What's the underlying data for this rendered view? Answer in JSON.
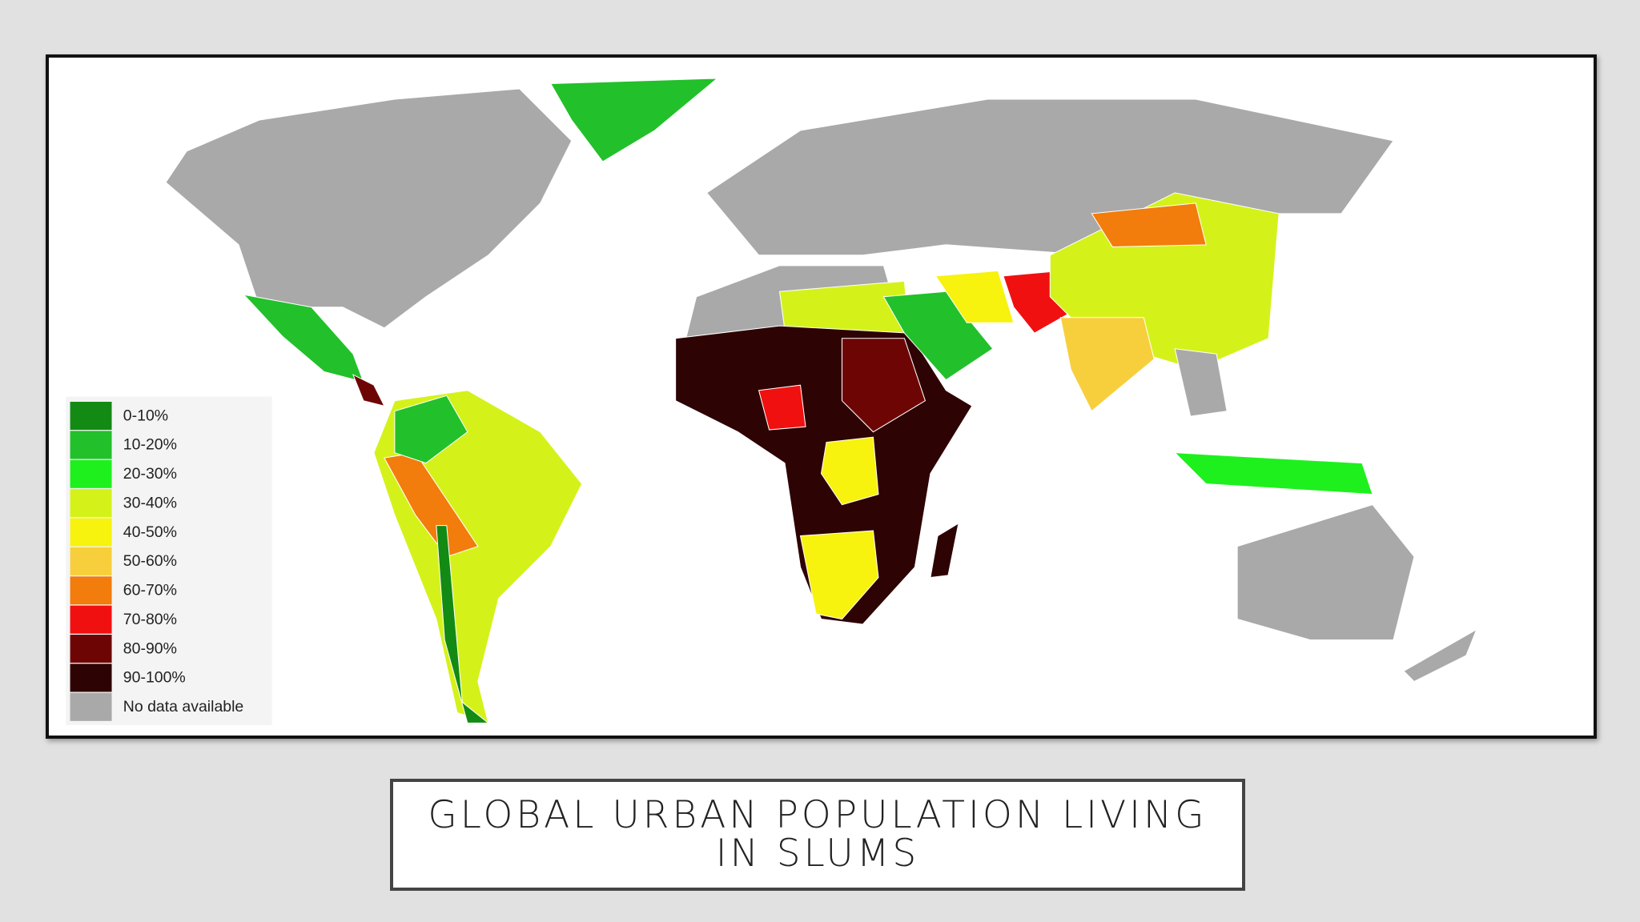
{
  "map": {
    "legend": [
      {
        "label": "0-10%",
        "color": "#138a13"
      },
      {
        "label": "10-20%",
        "color": "#22c02a"
      },
      {
        "label": "20-30%",
        "color": "#1ef01e"
      },
      {
        "label": "30-40%",
        "color": "#d4f21a"
      },
      {
        "label": "40-50%",
        "color": "#f7f20e"
      },
      {
        "label": "50-60%",
        "color": "#f7cf3c"
      },
      {
        "label": "60-70%",
        "color": "#f27c0c"
      },
      {
        "label": "70-80%",
        "color": "#f01010"
      },
      {
        "label": "80-90%",
        "color": "#6e0505"
      },
      {
        "label": "90-100%",
        "color": "#2e0303"
      },
      {
        "label": "No data available",
        "color": "#a9a9a9"
      }
    ]
  },
  "title": "GLOBAL URBAN POPULATION LIVING IN SLUMS"
}
